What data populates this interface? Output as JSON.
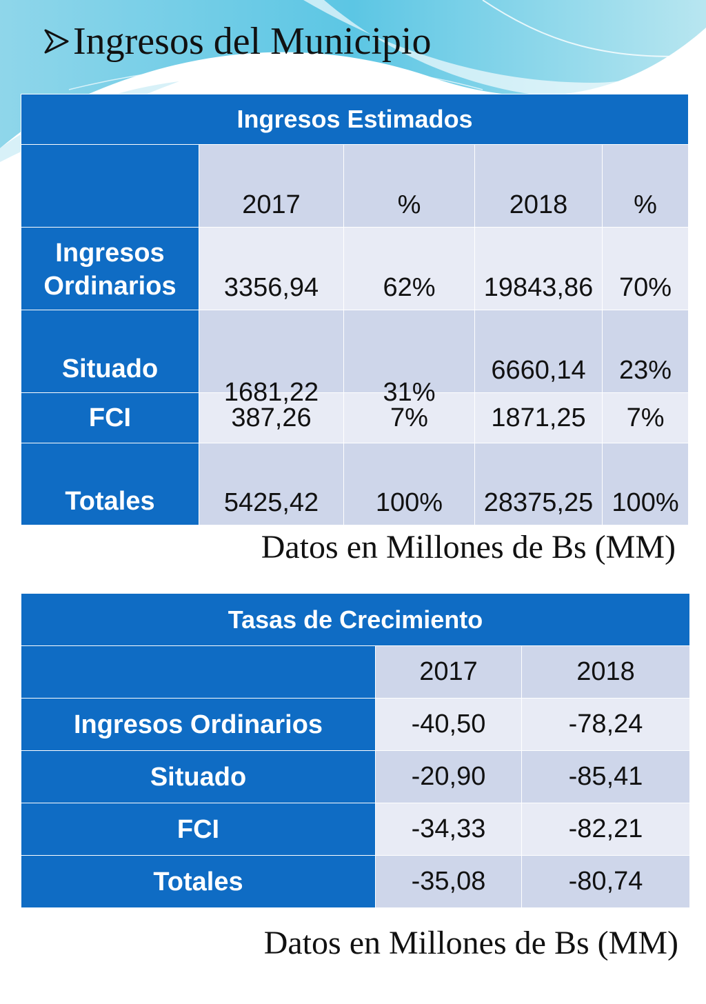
{
  "title": "Ingresos del Municipio",
  "colors": {
    "header_blue": "#0f6cc4",
    "cell_dark": "#ced6ea",
    "cell_light": "#e8ebf5",
    "wave": "#4fc3e0"
  },
  "icons": {
    "bullet": "arrow-bullet-icon"
  },
  "table1": {
    "caption": "Ingresos Estimados",
    "headers": [
      "",
      "2017",
      "%",
      "2018",
      "%"
    ],
    "rows": [
      {
        "label": "Ingresos Ordinarios",
        "v2017": "3356,94",
        "p2017": "62%",
        "v2018": "19843,86",
        "p2018": "70%"
      },
      {
        "label": "Situado",
        "v2017": "1681,22",
        "p2017": "31%",
        "v2018": "6660,14",
        "p2018": "23%"
      },
      {
        "label": "FCI",
        "v2017": "387,26",
        "p2017": "7%",
        "v2018": "1871,25",
        "p2018": "7%"
      },
      {
        "label": "Totales",
        "v2017": "5425,42",
        "p2017": "100%",
        "v2018": "28375,25",
        "p2018": "100%"
      }
    ],
    "note": "Datos en Millones de Bs (MM)"
  },
  "table2": {
    "caption": "Tasas de Crecimiento",
    "headers": [
      "",
      "2017",
      "2018"
    ],
    "rows": [
      {
        "label": "Ingresos Ordinarios",
        "v2017": "-40,50",
        "v2018": "-78,24"
      },
      {
        "label": "Situado",
        "v2017": "-20,90",
        "v2018": "-85,41"
      },
      {
        "label": "FCI",
        "v2017": "-34,33",
        "v2018": "-82,21"
      },
      {
        "label": "Totales",
        "v2017": "-35,08",
        "v2018": "-80,74"
      }
    ],
    "note": "Datos en Millones de Bs (MM)"
  }
}
